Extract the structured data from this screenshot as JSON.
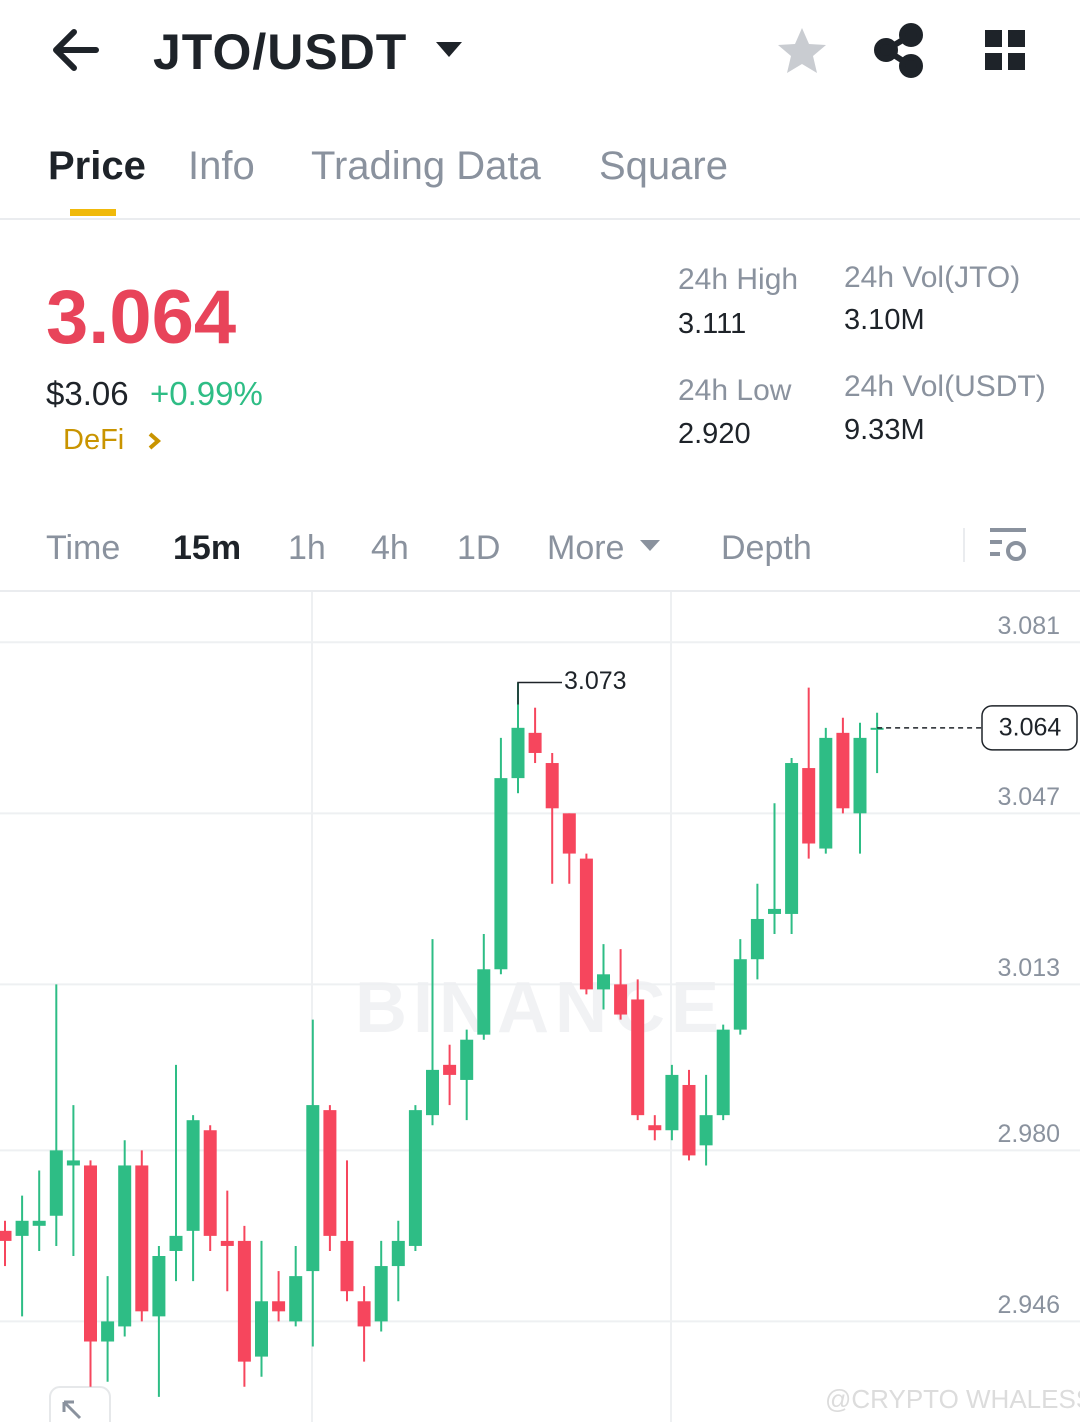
{
  "header": {
    "pair": "JTO/USDT"
  },
  "tabs": [
    "Price",
    "Info",
    "Trading Data",
    "Square"
  ],
  "ticker": {
    "price": "3.064",
    "usd_price": "$3.06",
    "change": "+0.99%",
    "sector": "DeFi"
  },
  "stats": [
    {
      "label": "24h High",
      "value": "3.111"
    },
    {
      "label": "24h Vol(JTO)",
      "value": "3.10M"
    },
    {
      "label": "24h Low",
      "value": "2.920"
    },
    {
      "label": "24h Vol(USDT)",
      "value": "9.33M"
    }
  ],
  "intervals": [
    "Time",
    "15m",
    "1h",
    "4h",
    "1D",
    "More",
    "Depth"
  ],
  "chart_data": {
    "type": "candlestick",
    "watermark": "BINANCE",
    "up_color": "#2ebd85",
    "down_color": "#f6465d",
    "ylim": [
      2.926,
      3.091
    ],
    "yticks": [
      3.081,
      3.047,
      3.013,
      {
        "value": 2.98,
        "label": "2.980"
      },
      2.946
    ],
    "grid": true,
    "max_marker": 3.073,
    "last_price": 3.064,
    "open": [
      2.964,
      2.963,
      2.965,
      2.967,
      2.977,
      2.977,
      2.942,
      2.945,
      2.977,
      2.947,
      2.96,
      2.964,
      2.984,
      2.962,
      2.962,
      2.939,
      2.95,
      2.946,
      2.956,
      2.988,
      2.962,
      2.95,
      2.946,
      2.957,
      2.961,
      2.987,
      2.997,
      2.994,
      3.003,
      3.016,
      3.054,
      3.063,
      3.057,
      3.047,
      3.038,
      3.012,
      3.013,
      3.01,
      2.985,
      2.984,
      2.993,
      2.981,
      2.987,
      3.004,
      3.018,
      3.027,
      3.027,
      3.056,
      3.04,
      3.063,
      3.047,
      3.064
    ],
    "high": [
      2.966,
      2.971,
      2.976,
      3.013,
      2.989,
      2.978,
      2.955,
      2.982,
      2.98,
      2.961,
      2.997,
      2.987,
      2.985,
      2.972,
      2.965,
      2.962,
      2.956,
      2.961,
      3.006,
      2.989,
      2.978,
      2.953,
      2.962,
      2.966,
      2.989,
      3.022,
      3.001,
      3.004,
      3.023,
      3.062,
      3.073,
      3.068,
      3.059,
      3.047,
      3.039,
      3.021,
      3.02,
      3.014,
      2.987,
      2.997,
      2.996,
      2.995,
      3.005,
      3.022,
      3.033,
      3.049,
      3.058,
      3.072,
      3.064,
      3.066,
      3.065,
      3.067
    ],
    "low": [
      2.957,
      2.947,
      2.96,
      2.961,
      2.959,
      2.933,
      2.934,
      2.943,
      2.946,
      2.931,
      2.954,
      2.954,
      2.96,
      2.952,
      2.933,
      2.935,
      2.946,
      2.945,
      2.941,
      2.96,
      2.95,
      2.938,
      2.944,
      2.95,
      2.96,
      2.985,
      2.989,
      2.986,
      3.002,
      3.015,
      3.051,
      3.057,
      3.033,
      3.033,
      3.011,
      3.008,
      3.006,
      2.986,
      2.982,
      2.982,
      2.978,
      2.977,
      2.986,
      3.003,
      3.014,
      3.023,
      3.023,
      3.038,
      3.039,
      3.047,
      3.039,
      3.055
    ],
    "close": [
      2.962,
      2.966,
      2.966,
      2.98,
      2.978,
      2.942,
      2.946,
      2.977,
      2.948,
      2.959,
      2.963,
      2.986,
      2.963,
      2.961,
      2.938,
      2.95,
      2.948,
      2.955,
      2.989,
      2.963,
      2.952,
      2.945,
      2.957,
      2.962,
      2.988,
      2.996,
      2.995,
      3.002,
      3.016,
      3.054,
      3.064,
      3.059,
      3.048,
      3.039,
      3.012,
      3.015,
      3.007,
      2.987,
      2.984,
      2.995,
      2.979,
      2.987,
      3.004,
      3.018,
      3.026,
      3.028,
      3.057,
      3.041,
      3.062,
      3.048,
      3.062,
      3.064
    ]
  },
  "watermark": "@CRYPTO WHALESS"
}
